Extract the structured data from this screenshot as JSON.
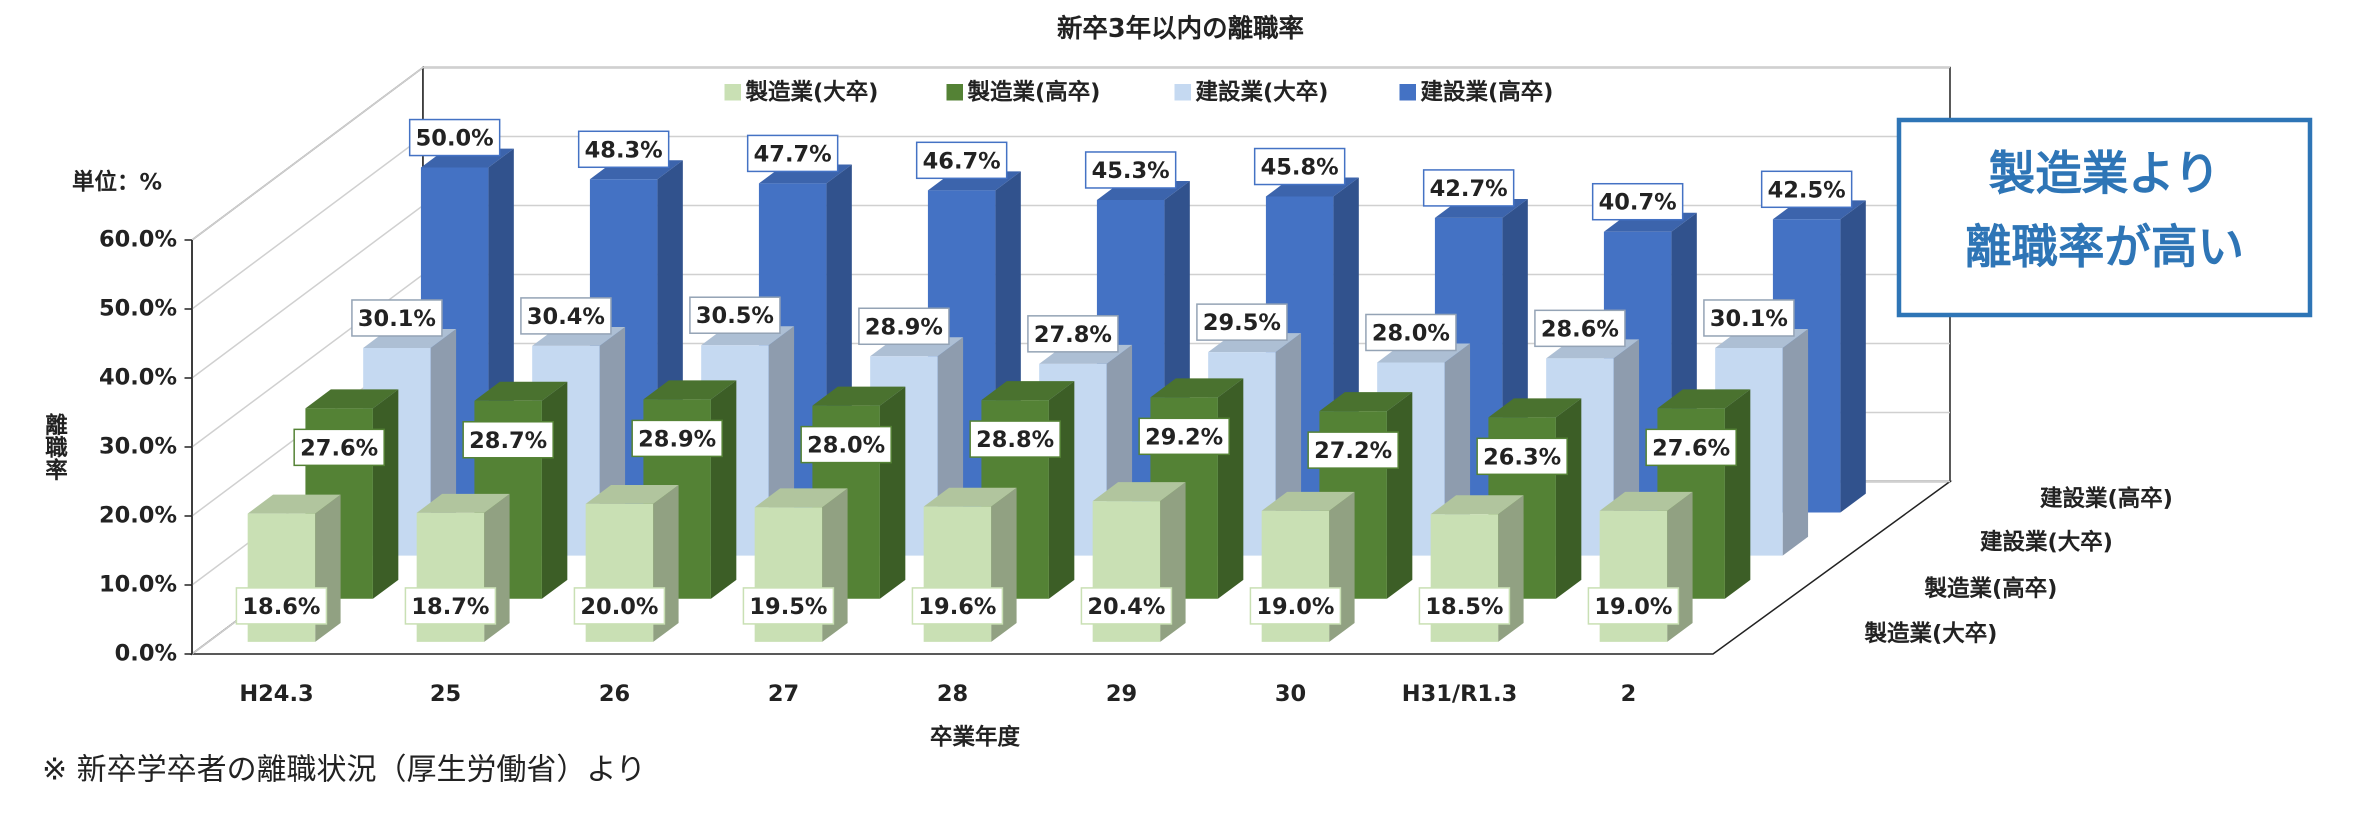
{
  "chart_data": {
    "type": "bar3d",
    "title": "新卒3年以内の離職率",
    "unit_label": "単位：%",
    "y_label": "離職率",
    "x_label": "卒業年度",
    "categories": [
      "H24.3",
      "25",
      "26",
      "27",
      "28",
      "29",
      "30",
      "H31/R1.3",
      "2"
    ],
    "series": [
      {
        "name": "製造業(大卒)",
        "color": "#c9e0b4",
        "values": [
          18.6,
          18.7,
          20.0,
          19.5,
          19.6,
          20.4,
          19.0,
          18.5,
          19.0
        ],
        "value_labels": [
          "18.6%",
          "18.7%",
          "20.0%",
          "19.5%",
          "19.6%",
          "20.4%",
          "19.0%",
          "18.5%",
          "19.0%"
        ]
      },
      {
        "name": "製造業(高卒)",
        "color": "#548235",
        "values": [
          27.6,
          28.7,
          28.9,
          28.0,
          28.8,
          29.2,
          27.2,
          26.3,
          27.6
        ],
        "value_labels": [
          "27.6%",
          "28.7%",
          "28.9%",
          "28.0%",
          "28.8%",
          "29.2%",
          "27.2%",
          "26.3%",
          "27.6%"
        ]
      },
      {
        "name": "建設業(大卒)",
        "color": "#c5d9f1",
        "values": [
          30.1,
          30.4,
          30.5,
          28.9,
          27.8,
          29.5,
          28.0,
          28.6,
          30.1
        ],
        "value_labels": [
          "30.1%",
          "30.4%",
          "30.5%",
          "28.9%",
          "27.8%",
          "29.5%",
          "28.0%",
          "28.6%",
          "30.1%"
        ]
      },
      {
        "name": "建設業(高卒)",
        "color": "#4472c4",
        "values": [
          50.0,
          48.3,
          47.7,
          46.7,
          45.3,
          45.8,
          42.7,
          40.7,
          42.5
        ],
        "value_labels": [
          "50.0%",
          "48.3%",
          "47.7%",
          "46.7%",
          "45.3%",
          "45.8%",
          "42.7%",
          "40.7%",
          "42.5%"
        ]
      }
    ],
    "ylim": [
      0,
      60
    ],
    "yticks": [
      {
        "value": 0,
        "label": "0.0%"
      },
      {
        "value": 10,
        "label": "10.0%"
      },
      {
        "value": 20,
        "label": "20.0%"
      },
      {
        "value": 30,
        "label": "30.0%"
      },
      {
        "value": 40,
        "label": "40.0%"
      },
      {
        "value": 50,
        "label": "50.0%"
      },
      {
        "value": 60,
        "label": "60.0%"
      }
    ],
    "grid": true,
    "legend": "top",
    "callout": [
      "製造業より",
      "離職率が高い"
    ],
    "footnote": "※ 新卒学卒者の離職状況（厚生労働省）より"
  }
}
